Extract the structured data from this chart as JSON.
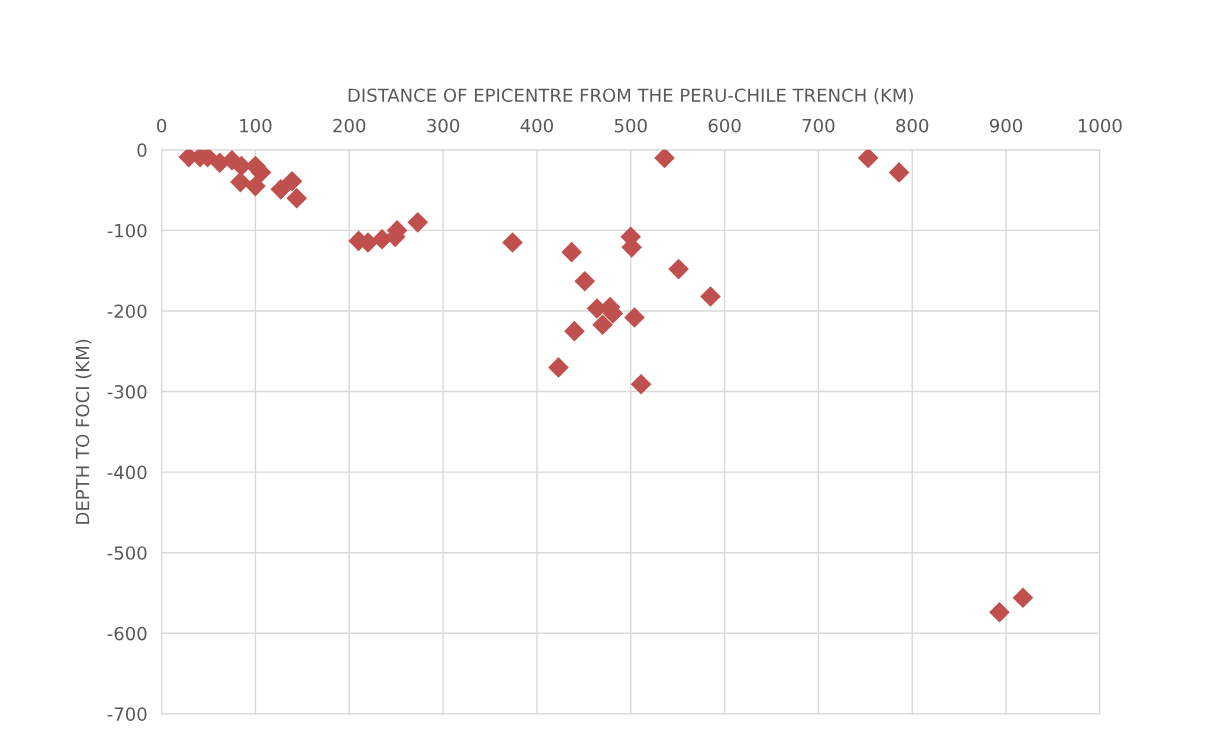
{
  "chart_data": {
    "type": "scatter",
    "xlabel": "DISTANCE OF EPICENTRE FROM THE PERU-CHILE TRENCH (KM)",
    "ylabel": "DEPTH TO FOCI (KM)",
    "x": [
      29,
      41,
      49,
      62,
      75,
      85,
      100,
      106,
      100,
      84,
      127,
      139,
      144,
      210,
      220,
      235,
      249,
      251,
      273,
      374,
      437,
      451,
      440,
      423,
      464,
      478,
      481,
      470,
      504,
      500,
      501,
      511,
      551,
      585,
      536,
      753,
      786,
      893,
      918
    ],
    "series": [
      {
        "color": "#c0504d",
        "values": [
          -9,
          -9,
          -9,
          -16,
          -13,
          -20,
          -20,
          -28,
          -45,
          -40,
          -49,
          -39,
          -60,
          -113,
          -115,
          -111,
          -108,
          -100,
          -90,
          -115,
          -127,
          -163,
          -225,
          -270,
          -197,
          -195,
          -203,
          -217,
          -208,
          -108,
          -121,
          -291,
          -148,
          -182,
          -10,
          -10,
          -28,
          -574,
          -556
        ]
      }
    ],
    "marker": "diamond",
    "grid": true,
    "legend": false,
    "xlim": [
      0,
      1000
    ],
    "xticks": [
      0,
      100,
      200,
      300,
      400,
      500,
      600,
      700,
      800,
      900,
      1000
    ],
    "ylim": [
      -700,
      0
    ],
    "yticks": [
      -700,
      -600,
      -500,
      -400,
      -300,
      -200,
      -100,
      0
    ]
  }
}
